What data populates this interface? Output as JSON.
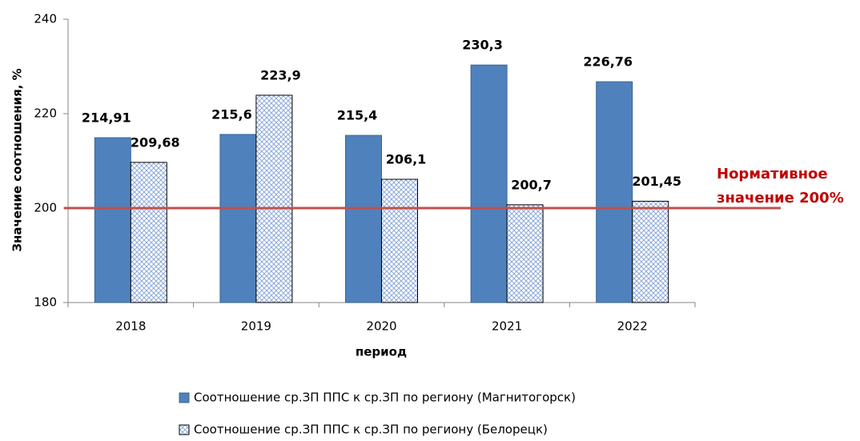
{
  "chart_data": {
    "type": "bar",
    "categories": [
      "2018",
      "2019",
      "2020",
      "2021",
      "2022"
    ],
    "series": [
      {
        "name": "Соотношение ср.ЗП ППС к ср.ЗП по региону (Магнитогорск)",
        "color": "#4f81bd",
        "pattern": "solid",
        "values": [
          214.91,
          215.6,
          215.4,
          230.3,
          226.76
        ],
        "value_labels": [
          "214,91",
          "215,6",
          "215,4",
          "230,3",
          "226,76"
        ]
      },
      {
        "name": "Соотношение ср.ЗП ППС к ср.ЗП по региону (Белорецк)",
        "color": "#8eaadb",
        "pattern": "crosshatch",
        "values": [
          209.68,
          223.9,
          206.1,
          200.7,
          201.45
        ],
        "value_labels": [
          "209,68",
          "223,9",
          "206,1",
          "200,7",
          "201,45"
        ]
      }
    ],
    "xlabel": "период",
    "ylabel": "Значение соотношения, %",
    "ylim": [
      180,
      240
    ],
    "yticks": [
      180,
      200,
      220,
      240
    ],
    "grid": false,
    "reference_line": {
      "value": 200,
      "color": "#c0504d",
      "label_lines": [
        "Нормативное",
        "значение  200%"
      ]
    }
  }
}
